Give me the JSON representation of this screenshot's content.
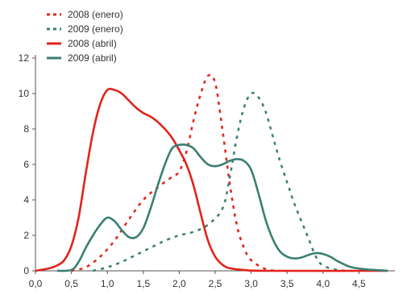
{
  "chart_data": {
    "type": "line",
    "title": "",
    "xlabel": "",
    "ylabel": "",
    "xlim": [
      0,
      5.0
    ],
    "ylim": [
      0,
      12
    ],
    "x_ticks": [
      "0,0",
      "0,5",
      "1,0",
      "1,5",
      "2,0",
      "2,5",
      "3,0",
      "3,5",
      "4,0",
      "4,5"
    ],
    "y_ticks": [
      "0",
      "2",
      "4",
      "6",
      "8",
      "10",
      "12"
    ],
    "grid": false,
    "legend_position": "top-left",
    "series": [
      {
        "name": "2008 (enero)",
        "color": "#e2231a",
        "style": "dashed",
        "points": [
          [
            0.5,
            0
          ],
          [
            0.7,
            0.2
          ],
          [
            0.9,
            0.8
          ],
          [
            1.1,
            1.7
          ],
          [
            1.3,
            2.9
          ],
          [
            1.5,
            4.0
          ],
          [
            1.7,
            4.7
          ],
          [
            1.9,
            5.3
          ],
          [
            2.0,
            5.6
          ],
          [
            2.1,
            6.7
          ],
          [
            2.2,
            8.5
          ],
          [
            2.3,
            10.0
          ],
          [
            2.4,
            11.0
          ],
          [
            2.5,
            10.6
          ],
          [
            2.6,
            8.0
          ],
          [
            2.7,
            5.0
          ],
          [
            2.8,
            2.6
          ],
          [
            2.9,
            1.3
          ],
          [
            3.0,
            0.6
          ],
          [
            3.2,
            0.1
          ],
          [
            3.4,
            0
          ]
        ]
      },
      {
        "name": "2009 (enero)",
        "color": "#3a7f72",
        "style": "dashed",
        "points": [
          [
            0.8,
            0
          ],
          [
            1.0,
            0.2
          ],
          [
            1.2,
            0.5
          ],
          [
            1.4,
            0.9
          ],
          [
            1.6,
            1.3
          ],
          [
            1.8,
            1.7
          ],
          [
            2.0,
            2.0
          ],
          [
            2.2,
            2.2
          ],
          [
            2.4,
            2.6
          ],
          [
            2.6,
            3.5
          ],
          [
            2.7,
            5.2
          ],
          [
            2.8,
            7.5
          ],
          [
            2.9,
            9.2
          ],
          [
            3.0,
            10.0
          ],
          [
            3.1,
            9.8
          ],
          [
            3.2,
            9.0
          ],
          [
            3.3,
            7.6
          ],
          [
            3.4,
            6.2
          ],
          [
            3.5,
            5.0
          ],
          [
            3.6,
            3.8
          ],
          [
            3.7,
            2.8
          ],
          [
            3.8,
            1.8
          ],
          [
            3.9,
            0.8
          ],
          [
            4.0,
            0.3
          ],
          [
            4.2,
            0.05
          ],
          [
            4.4,
            0
          ]
        ]
      },
      {
        "name": "2008 (abril)",
        "color": "#e2231a",
        "style": "solid",
        "points": [
          [
            0.0,
            0
          ],
          [
            0.2,
            0.15
          ],
          [
            0.3,
            0.3
          ],
          [
            0.4,
            0.6
          ],
          [
            0.5,
            1.4
          ],
          [
            0.6,
            3.0
          ],
          [
            0.7,
            5.5
          ],
          [
            0.8,
            7.8
          ],
          [
            0.9,
            9.4
          ],
          [
            1.0,
            10.2
          ],
          [
            1.1,
            10.2
          ],
          [
            1.2,
            10.0
          ],
          [
            1.3,
            9.6
          ],
          [
            1.4,
            9.2
          ],
          [
            1.5,
            8.9
          ],
          [
            1.6,
            8.7
          ],
          [
            1.7,
            8.4
          ],
          [
            1.8,
            8.0
          ],
          [
            1.9,
            7.5
          ],
          [
            2.0,
            6.8
          ],
          [
            2.1,
            6.0
          ],
          [
            2.2,
            4.8
          ],
          [
            2.3,
            3.2
          ],
          [
            2.4,
            1.7
          ],
          [
            2.5,
            0.8
          ],
          [
            2.6,
            0.35
          ],
          [
            2.7,
            0.15
          ],
          [
            2.9,
            0.05
          ],
          [
            3.2,
            0
          ],
          [
            4.9,
            0
          ]
        ]
      },
      {
        "name": "2009 (abril)",
        "color": "#3a7f72",
        "style": "solid",
        "points": [
          [
            0.3,
            0
          ],
          [
            0.5,
            0.05
          ],
          [
            0.6,
            0.5
          ],
          [
            0.7,
            1.3
          ],
          [
            0.8,
            2.0
          ],
          [
            0.9,
            2.6
          ],
          [
            1.0,
            3.0
          ],
          [
            1.1,
            2.8
          ],
          [
            1.2,
            2.3
          ],
          [
            1.3,
            1.9
          ],
          [
            1.4,
            1.9
          ],
          [
            1.5,
            2.4
          ],
          [
            1.6,
            3.5
          ],
          [
            1.7,
            4.8
          ],
          [
            1.8,
            6.0
          ],
          [
            1.9,
            6.9
          ],
          [
            2.0,
            7.1
          ],
          [
            2.1,
            7.1
          ],
          [
            2.2,
            6.9
          ],
          [
            2.3,
            6.4
          ],
          [
            2.4,
            6.0
          ],
          [
            2.5,
            5.9
          ],
          [
            2.6,
            6.0
          ],
          [
            2.7,
            6.2
          ],
          [
            2.8,
            6.3
          ],
          [
            2.9,
            6.2
          ],
          [
            3.0,
            5.7
          ],
          [
            3.1,
            4.4
          ],
          [
            3.2,
            2.9
          ],
          [
            3.3,
            1.8
          ],
          [
            3.4,
            1.1
          ],
          [
            3.5,
            0.8
          ],
          [
            3.6,
            0.7
          ],
          [
            3.7,
            0.75
          ],
          [
            3.8,
            0.9
          ],
          [
            3.9,
            1.0
          ],
          [
            4.0,
            0.95
          ],
          [
            4.1,
            0.8
          ],
          [
            4.2,
            0.55
          ],
          [
            4.3,
            0.35
          ],
          [
            4.4,
            0.2
          ],
          [
            4.6,
            0.08
          ],
          [
            4.8,
            0.03
          ],
          [
            4.9,
            0
          ]
        ]
      }
    ]
  }
}
